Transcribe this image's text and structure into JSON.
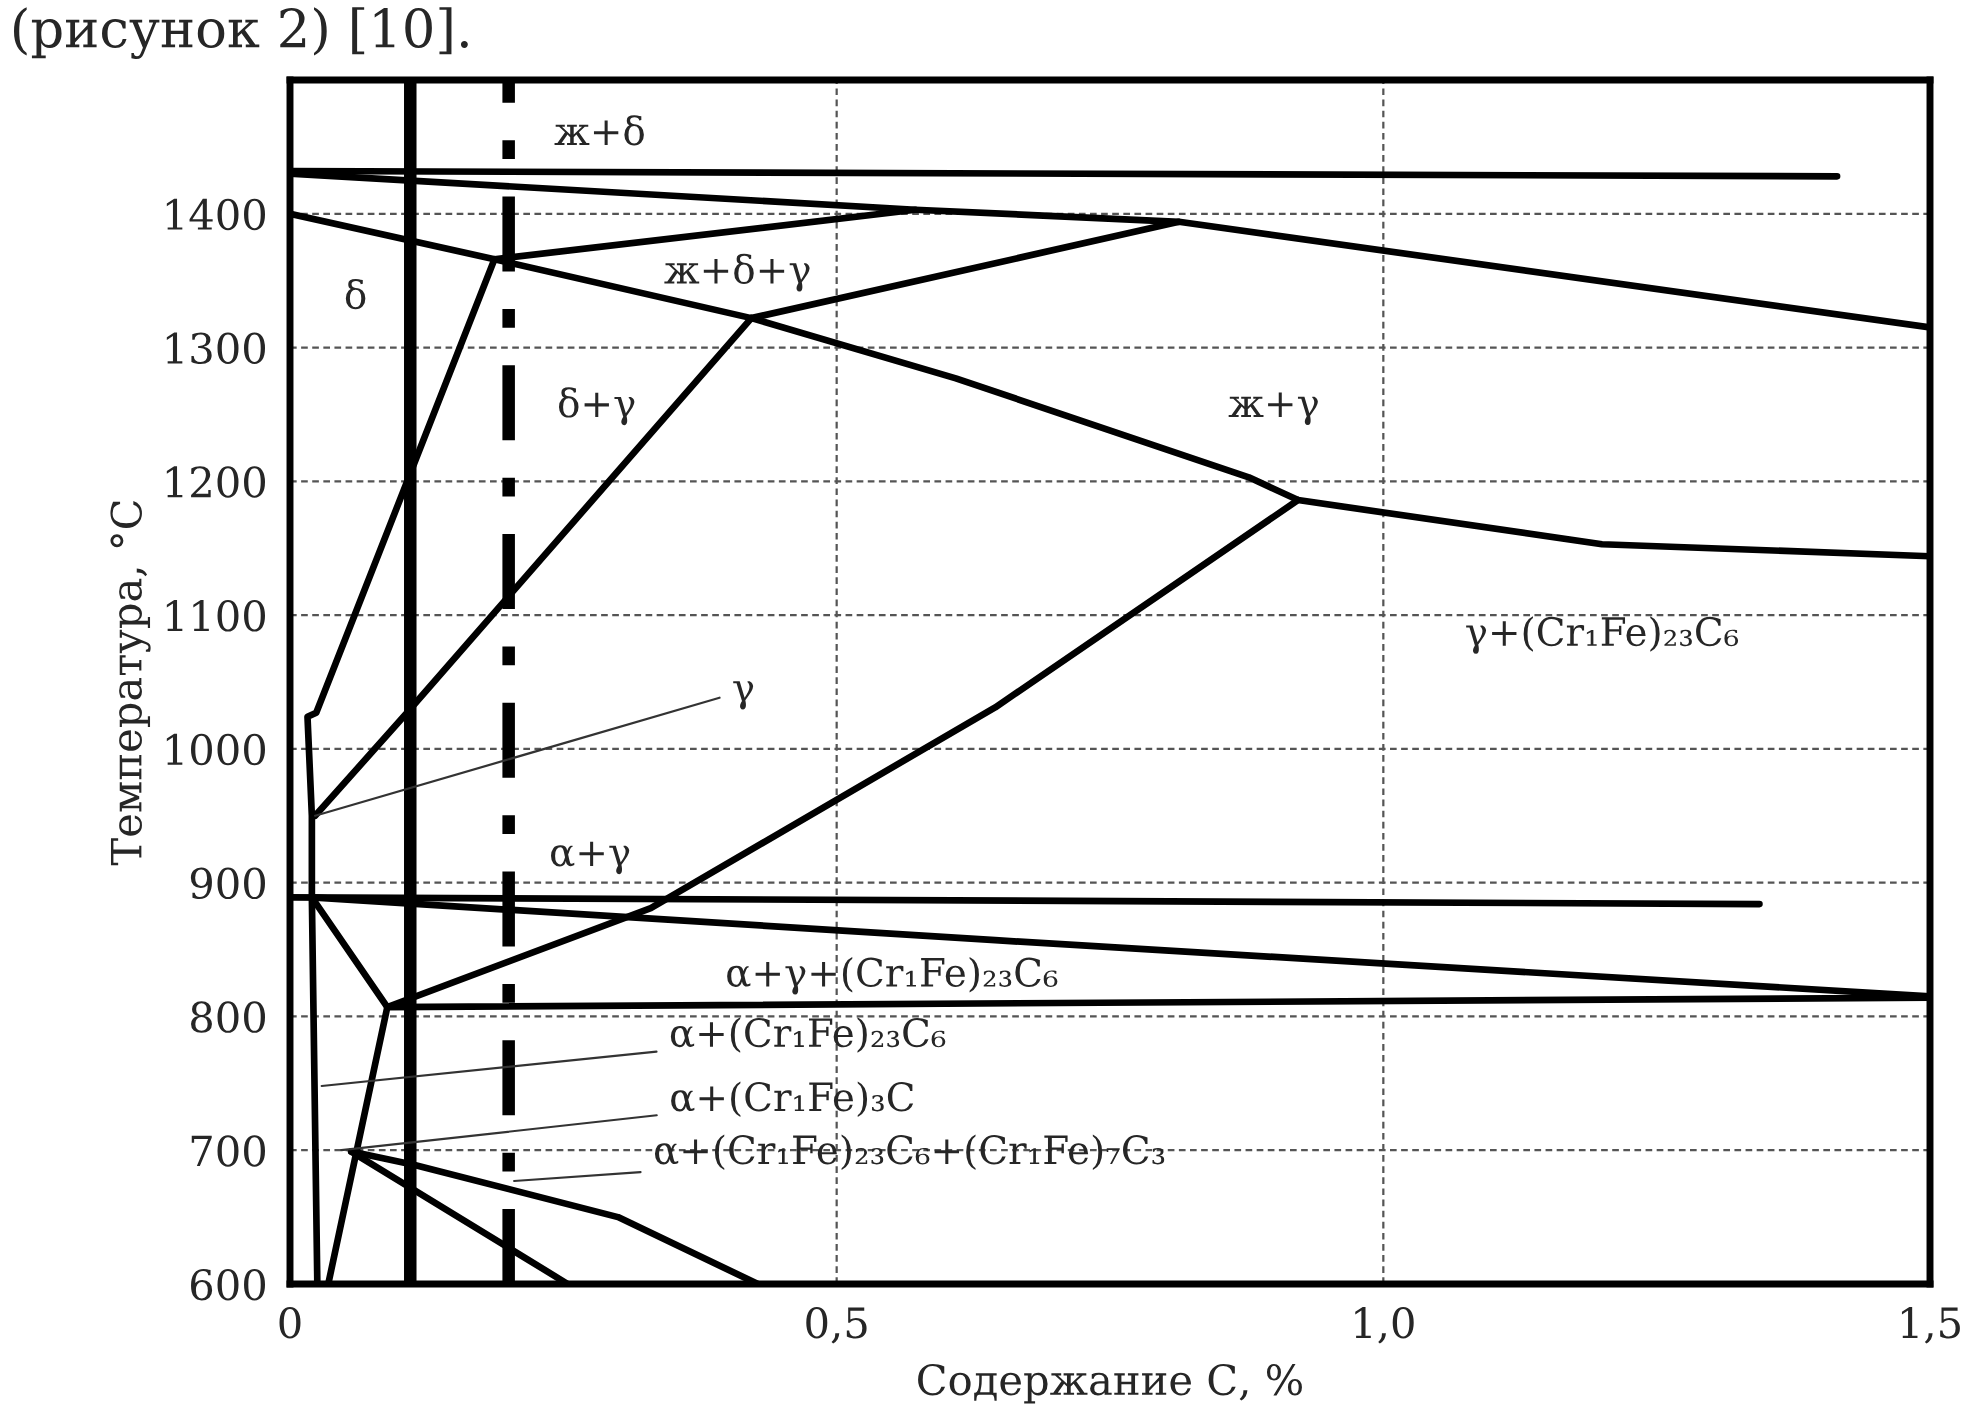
{
  "chart_data": {
    "type": "line",
    "xlabel": "Содержание С, %",
    "ylabel": "Температура, °С",
    "xlim": [
      0,
      1.5
    ],
    "ylim": [
      600,
      1500
    ],
    "xticks": [
      0,
      {
        "value": 0.5,
        "label": "0,5"
      },
      {
        "value": 1.0,
        "label": "1,0"
      },
      {
        "value": 1.5,
        "label": "1,5"
      }
    ],
    "yticks": [
      600,
      700,
      800,
      900,
      1000,
      1100,
      1200,
      1300,
      1400
    ],
    "grid": true,
    "marker": "none",
    "line_style": "solid",
    "series": [
      {
        "color": "#000000",
        "x": [
          0,
          1.415
        ],
        "values": [
          1432,
          1428
        ]
      },
      {
        "color": "#000000",
        "x": [
          0,
          0.572,
          0.813,
          1.5
        ],
        "values": [
          1430,
          1403,
          1394,
          1315
        ]
      },
      {
        "color": "#000000",
        "x": [
          0.187,
          0.572
        ],
        "values": [
          1366,
          1403
        ]
      },
      {
        "color": "#000000",
        "x": [
          0.422,
          0.813
        ],
        "values": [
          1322,
          1394
        ]
      },
      {
        "color": "#000000",
        "x": [
          0,
          0.187,
          0.422,
          0.609,
          0.877,
          0.922,
          1.2,
          1.5
        ],
        "values": [
          1400,
          1366,
          1322,
          1277,
          1203,
          1186,
          1153,
          1144
        ]
      },
      {
        "color": "#000000",
        "x": [
          0.187,
          0.024,
          0.016,
          0.02,
          0.02,
          0.025
        ],
        "values": [
          1366,
          1027,
          1024,
          950,
          889,
          600
        ]
      },
      {
        "color": "#000000",
        "x": [
          0.023,
          0.107,
          0.422
        ],
        "values": [
          950,
          1027,
          1322
        ]
      },
      {
        "color": "#000000",
        "x": [
          0.089,
          0.33,
          0.645,
          0.922
        ],
        "values": [
          807,
          881,
          1031,
          1186
        ]
      },
      {
        "color": "#000000",
        "x": [
          0,
          1.344
        ],
        "values": [
          889,
          884
        ]
      },
      {
        "color": "#000000",
        "x": [
          0.02,
          0.645,
          1.5
        ],
        "values": [
          889,
          857,
          815
        ]
      },
      {
        "color": "#000000",
        "x": [
          0.089,
          1.5
        ],
        "values": [
          807,
          814
        ]
      },
      {
        "color": "#000000",
        "x": [
          0.02,
          0.089
        ],
        "values": [
          889,
          807
        ]
      },
      {
        "color": "#000000",
        "x": [
          0.089,
          0.035
        ],
        "values": [
          807,
          600
        ]
      },
      {
        "color": "#000000",
        "x": [
          0.056,
          0.254
        ],
        "values": [
          699,
          600
        ]
      },
      {
        "color": "#000000",
        "x": [
          0.056,
          0.114,
          0.3,
          0.428
        ],
        "values": [
          699,
          689,
          650,
          600
        ]
      }
    ],
    "ref_lines": [
      {
        "axis": "x",
        "value": 0.11,
        "color": "#000000",
        "line_style": "solid"
      },
      {
        "axis": "x",
        "value": 0.2,
        "color": "#000000",
        "line_style": "dashdot"
      }
    ],
    "annotations": [
      "(рисунок 2) [10].",
      "ж+δ",
      "δ",
      "ж+δ+γ",
      "δ+γ",
      "ж+γ",
      "γ+(Cr₁Fe)₂₃C₆",
      "α+γ",
      "α+γ+(Cr₁Fe)₂₃C₆",
      {
        "text": "γ",
        "x": 0.023,
        "y": 950
      },
      {
        "text": "α+(Cr₁Fe)₂₃C₆",
        "x": 0.029,
        "y": 748
      },
      {
        "text": "α+(Cr₁Fe)₃C",
        "x": 0.047,
        "y": 700
      },
      {
        "text": "α+(Cr₁Fe)₂₃C₆+(Cr₁Fe)₇C₃",
        "x": 0.205,
        "y": 677
      }
    ]
  }
}
